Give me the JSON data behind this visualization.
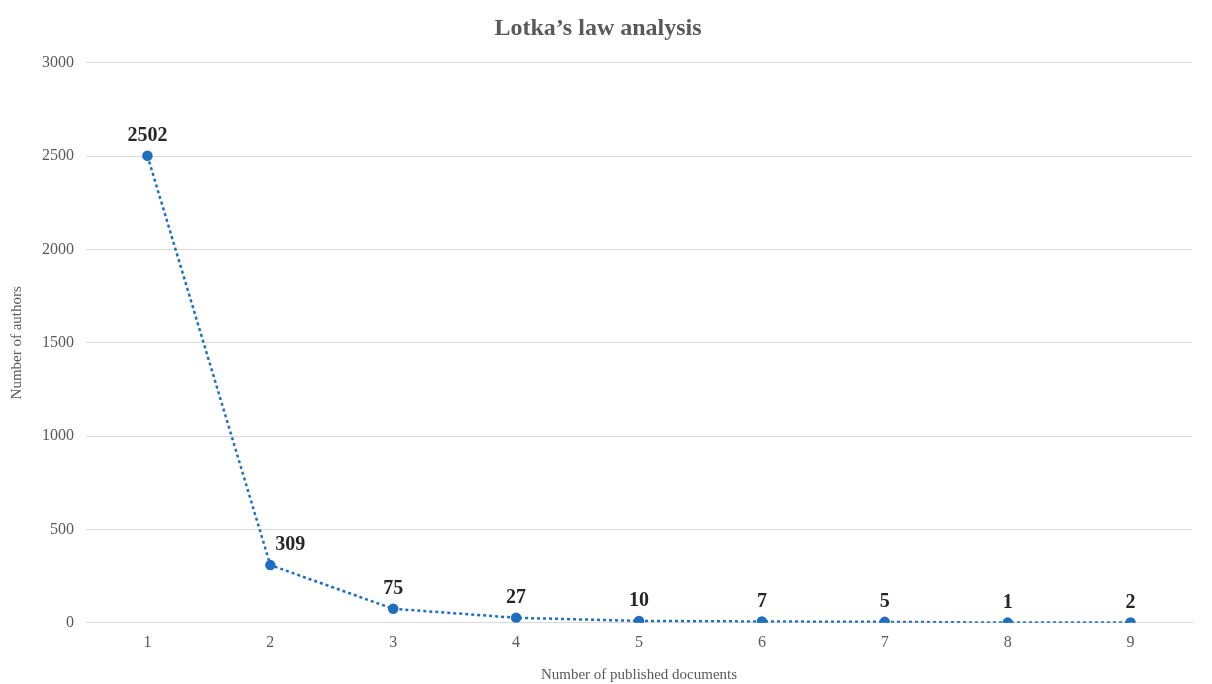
{
  "chart_data": {
    "type": "line",
    "title": "Lotka’s law analysis",
    "xlabel": "Number of published documents",
    "ylabel": "Number of authors",
    "categories": [
      "1",
      "2",
      "3",
      "4",
      "5",
      "6",
      "7",
      "8",
      "9"
    ],
    "series": [
      {
        "color": "#1f6fc0",
        "values": [
          2502,
          309,
          75,
          27,
          10,
          7,
          5,
          1,
          2
        ]
      }
    ],
    "ylim": [
      0,
      3000
    ],
    "yticks": [
      0,
      500,
      1000,
      1500,
      2000,
      2500,
      3000
    ],
    "grid": "y",
    "legend": false,
    "marker": "circle",
    "line_style": "dotted",
    "data_labels": true
  }
}
